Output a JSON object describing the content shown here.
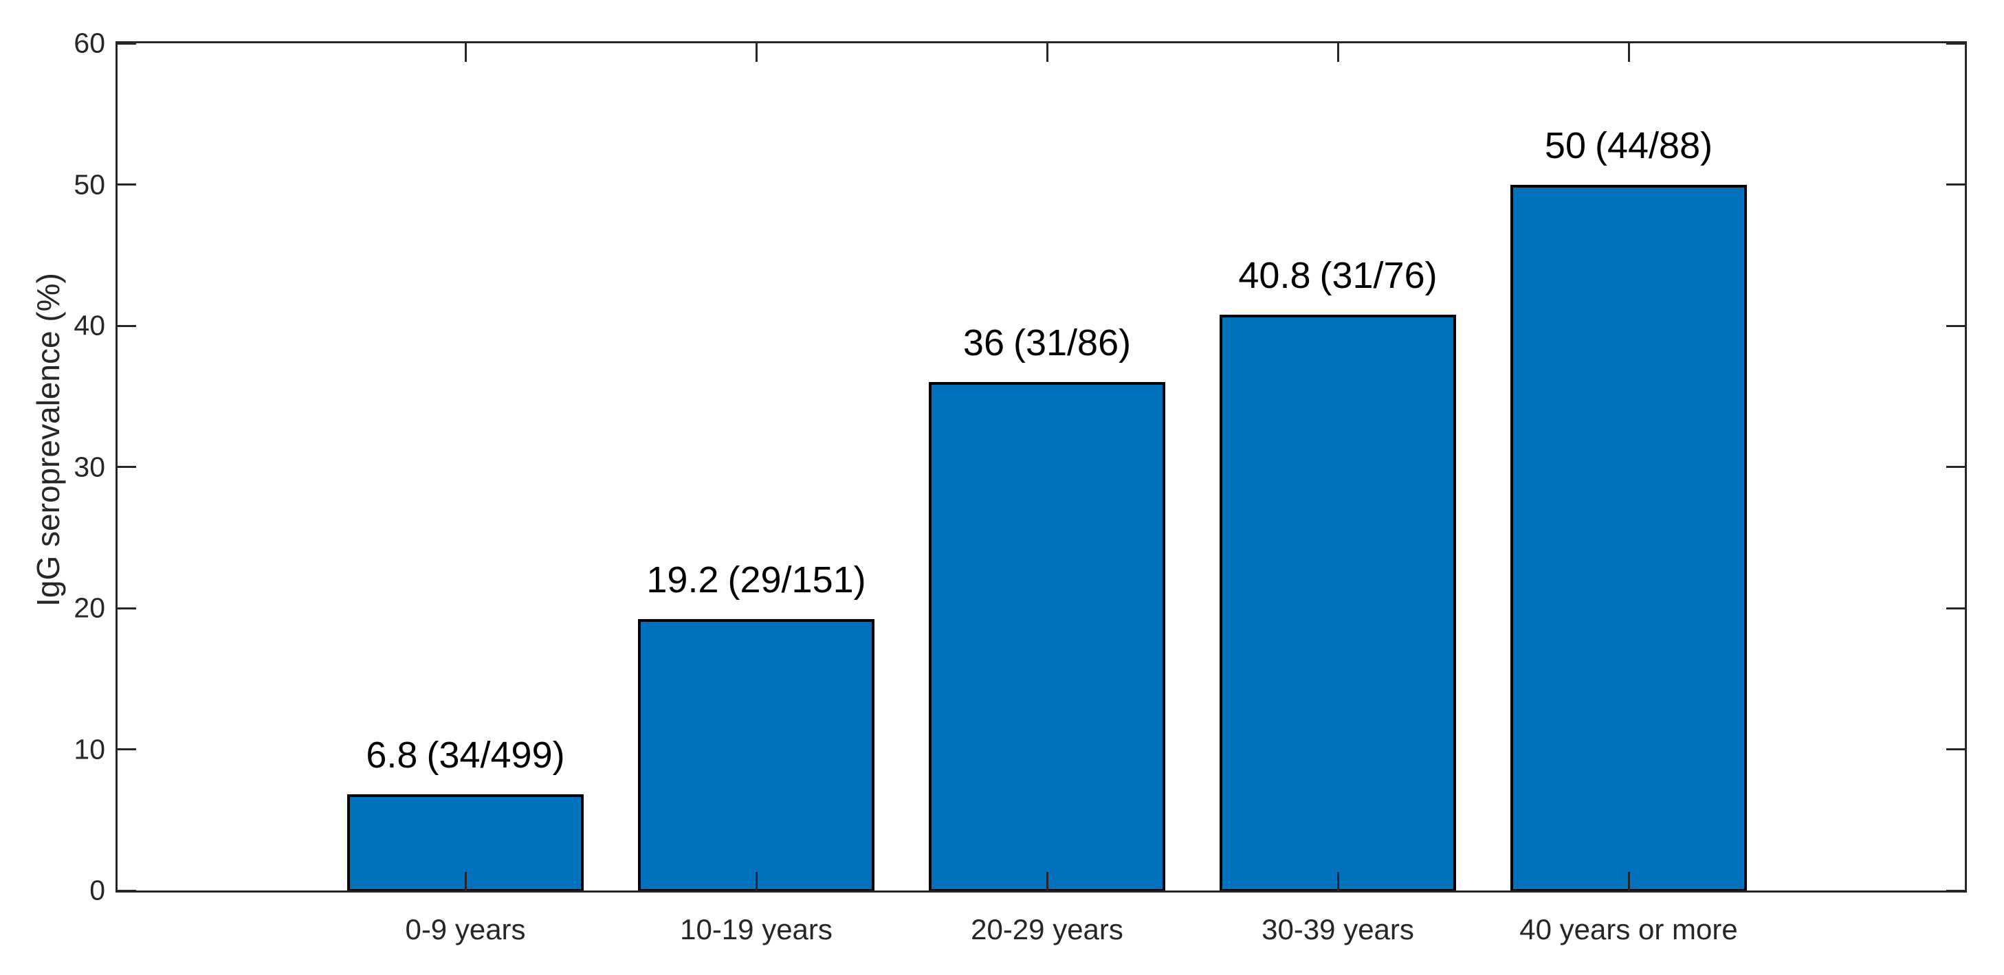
{
  "chart_data": {
    "type": "bar",
    "title": "",
    "xlabel": "",
    "ylabel": "IgG seroprevalence (%)",
    "categories": [
      "0-9 years",
      "10-19 years",
      "20-29 years",
      "30-39 years",
      "40 years or more"
    ],
    "values": [
      6.8,
      19.2,
      36,
      40.8,
      50
    ],
    "bar_labels": [
      {
        "value": "6.8",
        "fraction": "(34/499)"
      },
      {
        "value": "19.2",
        "fraction": "(29/151)"
      },
      {
        "value": "36",
        "fraction": "(31/86)"
      },
      {
        "value": "40.8",
        "fraction": "(31/76)"
      },
      {
        "value": "50",
        "fraction": "(44/88)"
      }
    ],
    "numerators": [
      34,
      29,
      31,
      31,
      44
    ],
    "denominators": [
      499,
      151,
      86,
      76,
      88
    ],
    "ylim": [
      0,
      60
    ],
    "yticks": [
      0,
      10,
      20,
      30,
      40,
      50,
      60
    ],
    "grid": false,
    "legend": null,
    "axis_box": true,
    "tick_direction": "in",
    "colors": {
      "bar_fill": "#0072BD",
      "bar_edge": "#000000",
      "axis": "#262626",
      "axis_text": "#262626",
      "background": "#ffffff"
    }
  }
}
